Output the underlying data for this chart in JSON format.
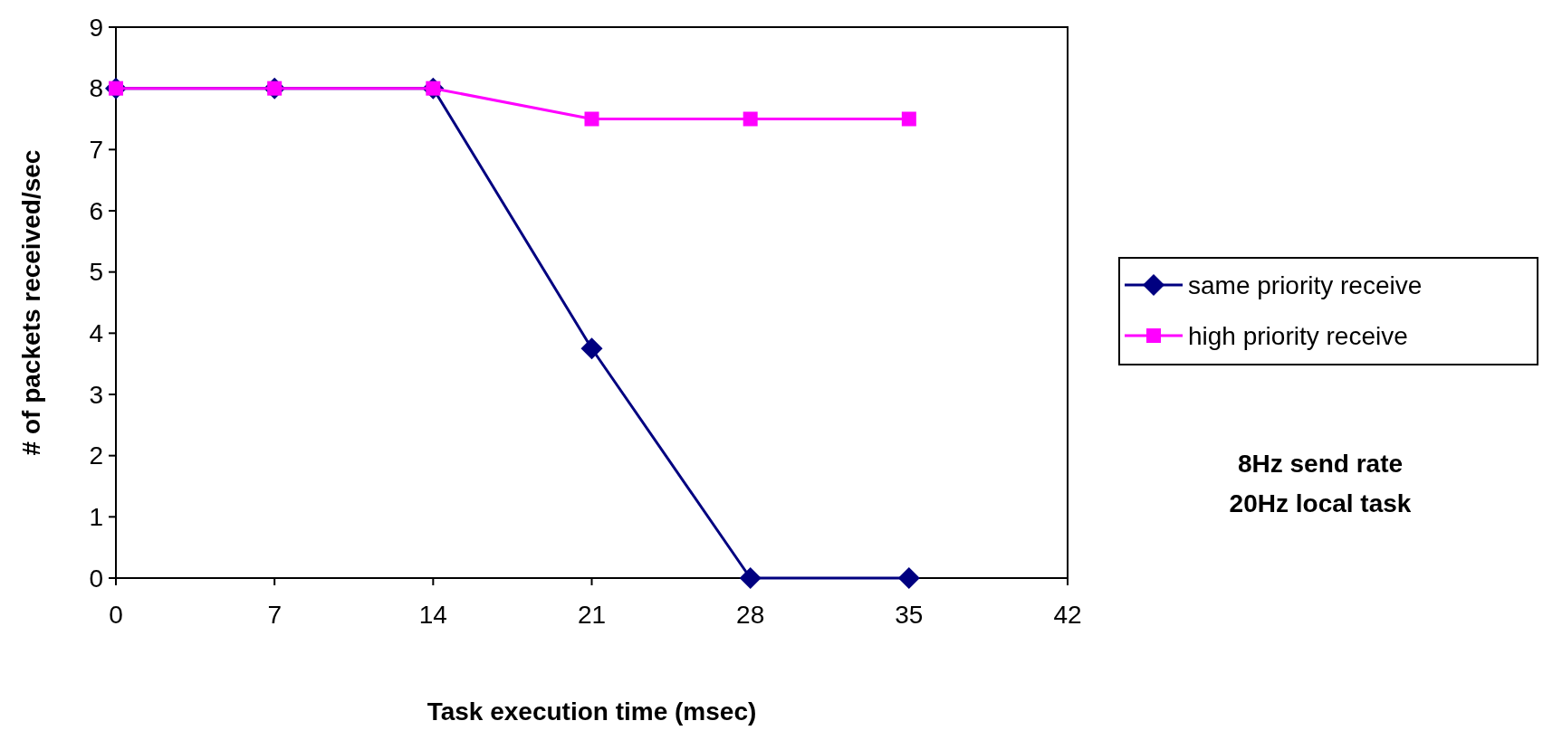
{
  "chart_data": {
    "type": "line",
    "xlabel": "Task execution time (msec)",
    "ylabel": "# of packets received/sec",
    "x": [
      0,
      7,
      14,
      21,
      28,
      35
    ],
    "xlim": [
      0,
      42
    ],
    "xticks": [
      0,
      7,
      14,
      21,
      28,
      35,
      42
    ],
    "ylim": [
      0,
      9
    ],
    "yticks": [
      0,
      1,
      2,
      3,
      4,
      5,
      6,
      7,
      8,
      9
    ],
    "series": [
      {
        "name": "same priority receive",
        "color": "#000080",
        "values": [
          8,
          8,
          8,
          3.75,
          0,
          0
        ],
        "marker": "diamond"
      },
      {
        "name": "high priority receive",
        "color": "#ff00ff",
        "values": [
          8,
          8,
          8,
          7.5,
          7.5,
          7.5
        ],
        "marker": "square"
      }
    ],
    "legend": "right",
    "grid": false,
    "annotations": [
      "8Hz send rate",
      "20Hz local task"
    ]
  }
}
